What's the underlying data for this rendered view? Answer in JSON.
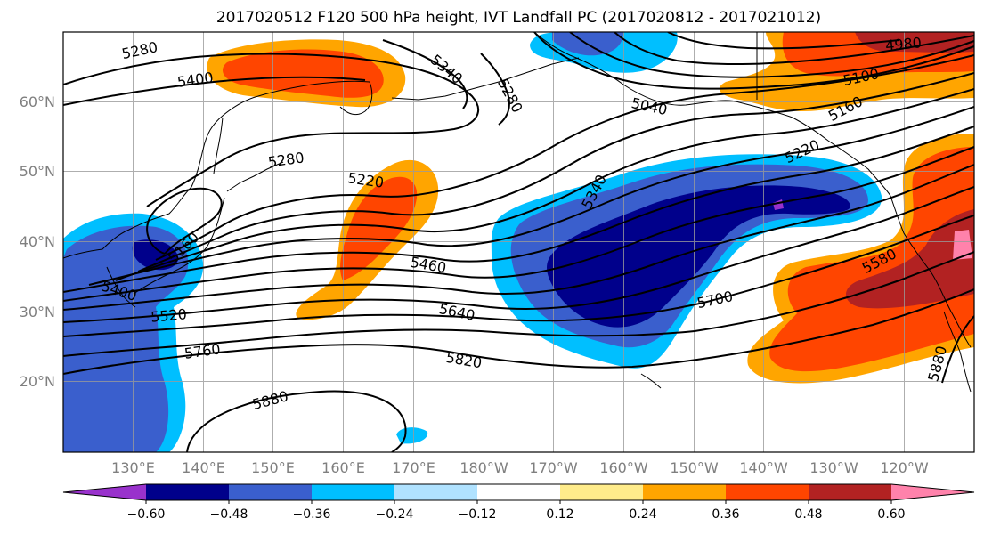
{
  "title": "2017020512 F120 500 hPa height, IVT Landfall PC (2017020812 - 2017021012)",
  "map": {
    "lat_labels": [
      "60°N",
      "50°N",
      "40°N",
      "30°N",
      "20°N"
    ],
    "lon_labels": [
      "130°E",
      "140°E",
      "150°E",
      "160°E",
      "170°E",
      "180°W",
      "170°W",
      "160°W",
      "150°W",
      "140°W",
      "130°W",
      "120°W"
    ],
    "contour_labels": [
      "5280",
      "5400",
      "5340",
      "5280",
      "5040",
      "4980",
      "5100",
      "5160",
      "5220",
      "5280",
      "5220",
      "5340",
      "5160",
      "5400",
      "5460",
      "5520",
      "5640",
      "5760",
      "5820",
      "5700",
      "5580",
      "5880",
      "5880"
    ]
  },
  "colorbar": {
    "tick_labels": [
      "−0.60",
      "−0.48",
      "−0.36",
      "−0.24",
      "−0.12",
      "0.12",
      "0.24",
      "0.36",
      "0.48",
      "0.60"
    ],
    "colors": [
      "#9932cc",
      "#00008b",
      "#3a5fcd",
      "#00bfff",
      "#b0e2ff",
      "#ffffff",
      "#ffec8b",
      "#ffa500",
      "#ff4500",
      "#b22222",
      "#ff82ab"
    ]
  }
}
